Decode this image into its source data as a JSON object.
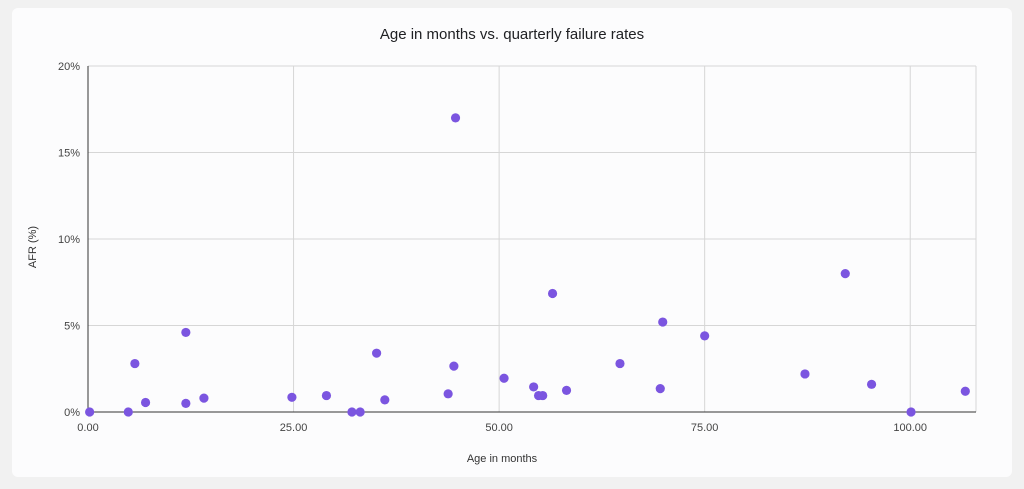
{
  "chart_data": {
    "type": "scatter",
    "title": "Age in months vs. quarterly failure rates",
    "xlabel": "Age in months",
    "ylabel": "AFR (%)",
    "xlim": [
      0,
      108
    ],
    "ylim": [
      0,
      20
    ],
    "x_ticks": [
      0,
      25,
      50,
      75,
      100
    ],
    "x_tick_labels": [
      "0.00",
      "25.00",
      "50.00",
      "75.00",
      "100.00"
    ],
    "y_ticks": [
      0,
      5,
      10,
      15,
      20
    ],
    "y_tick_labels": [
      "0%",
      "5%",
      "10%",
      "15%",
      "20%"
    ],
    "grid": true,
    "point_color": "#7b55e0",
    "points": [
      {
        "x": 0.2,
        "y": 0.0
      },
      {
        "x": 4.9,
        "y": 0.0
      },
      {
        "x": 5.7,
        "y": 2.8
      },
      {
        "x": 7.0,
        "y": 0.55
      },
      {
        "x": 11.9,
        "y": 4.6
      },
      {
        "x": 11.9,
        "y": 0.5
      },
      {
        "x": 14.1,
        "y": 0.8
      },
      {
        "x": 24.8,
        "y": 0.85
      },
      {
        "x": 29.0,
        "y": 0.95
      },
      {
        "x": 32.1,
        "y": 0.0
      },
      {
        "x": 33.1,
        "y": 0.0
      },
      {
        "x": 35.1,
        "y": 3.4
      },
      {
        "x": 36.1,
        "y": 0.7
      },
      {
        "x": 43.8,
        "y": 1.05
      },
      {
        "x": 44.5,
        "y": 2.65
      },
      {
        "x": 44.7,
        "y": 17.0
      },
      {
        "x": 50.6,
        "y": 1.95
      },
      {
        "x": 54.2,
        "y": 1.45
      },
      {
        "x": 54.8,
        "y": 0.95
      },
      {
        "x": 55.3,
        "y": 0.95
      },
      {
        "x": 56.5,
        "y": 6.85
      },
      {
        "x": 58.2,
        "y": 1.25
      },
      {
        "x": 64.7,
        "y": 2.8
      },
      {
        "x": 69.6,
        "y": 1.35
      },
      {
        "x": 69.9,
        "y": 5.2
      },
      {
        "x": 75.0,
        "y": 4.4
      },
      {
        "x": 87.2,
        "y": 2.2
      },
      {
        "x": 92.1,
        "y": 8.0
      },
      {
        "x": 95.3,
        "y": 1.6
      },
      {
        "x": 100.1,
        "y": 0.0
      },
      {
        "x": 106.7,
        "y": 1.2
      }
    ]
  }
}
